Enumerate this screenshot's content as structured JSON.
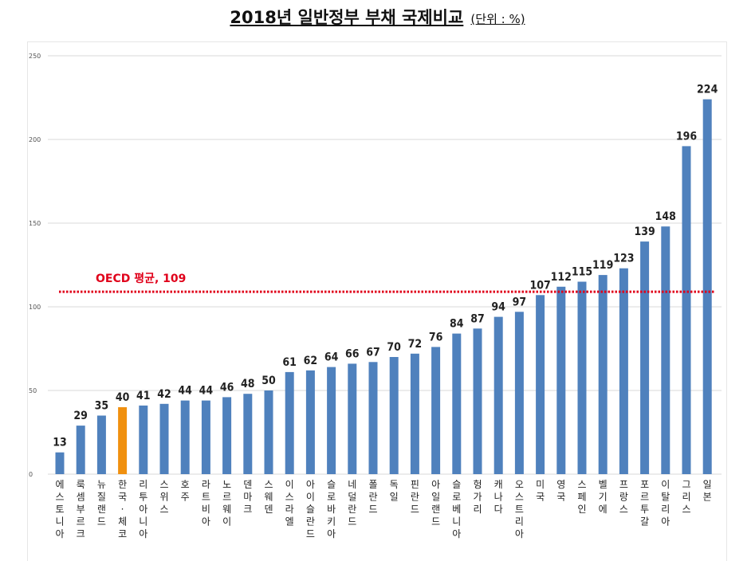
{
  "title": {
    "main": "2018년 일반정부 부채 국제비교",
    "unit": "(단위 : %)"
  },
  "colors": {
    "bar": "#4f81bd",
    "highlight": "#f0900f",
    "average": "#e0001a",
    "grid": "#d9d9d9"
  },
  "chart_data": {
    "type": "bar",
    "title": "2018년 일반정부 부채 국제비교",
    "xlabel": "",
    "ylabel": "",
    "ylim": [
      0,
      250
    ],
    "yticks": [
      0,
      50,
      100,
      150,
      200,
      250
    ],
    "grid": true,
    "categories": [
      "에스토니아",
      "룩셈부르크",
      "뉴질랜드",
      "한국·체코",
      "리투아니아",
      "스위스",
      "호주",
      "라트비아",
      "노르웨이",
      "덴마크",
      "스웨덴",
      "이스라엘",
      "아이슬란드",
      "슬로바키아",
      "네덜란드",
      "폴란드",
      "독일",
      "핀란드",
      "아일랜드",
      "슬로베니아",
      "헝가리",
      "캐나다",
      "오스트리아",
      "미국",
      "영국",
      "스페인",
      "벨기에",
      "프랑스",
      "포르투갈",
      "이탈리아",
      "그리스",
      "일본"
    ],
    "values": [
      13,
      29,
      35,
      40,
      41,
      42,
      44,
      44,
      46,
      48,
      50,
      61,
      62,
      64,
      66,
      67,
      70,
      72,
      76,
      84,
      87,
      94,
      97,
      107,
      112,
      115,
      119,
      123,
      139,
      148,
      196,
      224
    ],
    "highlight_index": 3,
    "reference_line": {
      "label": "OECD 평균, 109",
      "value": 109
    }
  }
}
